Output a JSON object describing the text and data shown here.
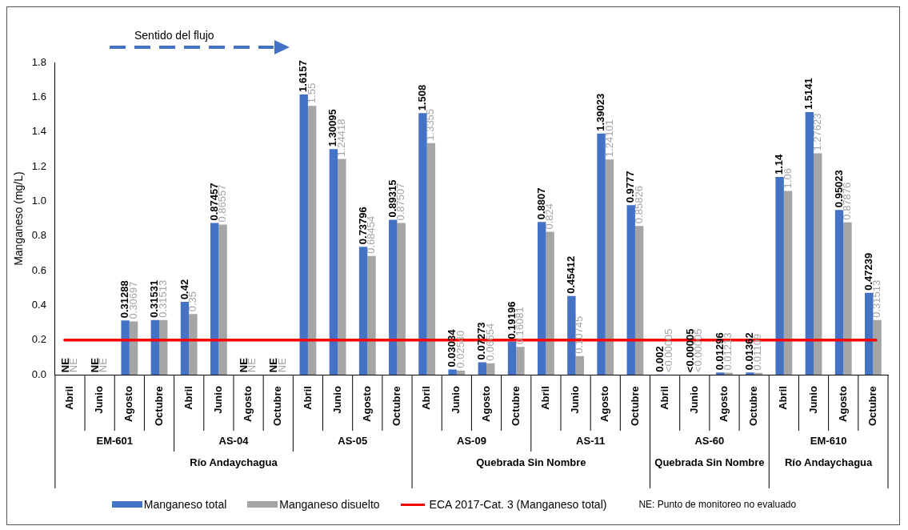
{
  "chart_data": {
    "type": "bar",
    "ylabel": "Manganeso (mg/L)",
    "categories": [
      "Abril",
      "Junio",
      "Agosto",
      "Octubre",
      "Abril",
      "Junio",
      "Agosto",
      "Octubre",
      "Abril",
      "Junio",
      "Agosto",
      "Octubre",
      "Abril",
      "Junio",
      "Agosto",
      "Octubre",
      "Abril",
      "Junio",
      "Agosto",
      "Octubre",
      "Abril",
      "Junio",
      "Agosto",
      "Octubre",
      "Abril",
      "Junio",
      "Agosto",
      "Octubre"
    ],
    "series": [
      {
        "name": "Manganeso total",
        "color": "#4472c4",
        "values": [
          null,
          null,
          0.31288,
          0.31531,
          0.42,
          0.87457,
          null,
          null,
          1.6157,
          1.30095,
          0.73796,
          0.89315,
          1.508,
          0.03034,
          0.07273,
          0.19196,
          0.8807,
          0.45412,
          1.39023,
          0.9777,
          0.002,
          5e-05,
          0.01296,
          0.01362,
          1.14,
          1.5141,
          0.95023,
          0.47239
        ],
        "value_labels": [
          "NE",
          "NE",
          "0.31288",
          "0.31531",
          "0.42",
          "0.87457",
          "NE",
          "NE",
          "1.6157",
          "1.30095",
          "0.73796",
          "0.89315",
          "1.508",
          "0.03034",
          "0.07273",
          "0.19196",
          "0.8807",
          "0.45412",
          "1.39023",
          "0.9777",
          "0.002",
          "<0.00005",
          "0.01296",
          "0.01362",
          "1.14",
          "1.5141",
          "0.95023",
          "0.47239"
        ]
      },
      {
        "name": "Manganeso disuelto",
        "color": "#a5a5a5",
        "values": [
          null,
          null,
          0.30697,
          0.31513,
          0.35,
          0.86557,
          null,
          null,
          1.55,
          1.24418,
          0.68454,
          0.87507,
          1.3355,
          0.0254,
          0.06654,
          0.16081,
          0.824,
          0.10745,
          1.24101,
          0.85826,
          5e-05,
          5e-05,
          0.01213,
          0.01109,
          1.06,
          1.27623,
          0.87876,
          0.31513
        ],
        "value_labels": [
          "NE",
          "NE",
          "0.30697",
          "0.31513",
          "0.35",
          "0.86557",
          "NE",
          "NE",
          "1.55",
          "1.24418",
          "0.68454",
          "0.87507",
          "1.3355",
          "0.02540",
          "0.06654",
          "0.16081",
          "0.824",
          "0.10745",
          "1.24101",
          "0.85826",
          "<0.00005",
          "<0.00005",
          "0.01213",
          "0.01109",
          "1.06",
          "1.27623",
          "0.87876",
          "0.31513"
        ]
      }
    ],
    "ylim": [
      0,
      1.8
    ],
    "yticks": [
      {
        "value": 0,
        "label": "0.0"
      },
      0.2,
      0.4,
      0.6,
      0.8,
      {
        "value": 1,
        "label": "1.0"
      },
      1.2,
      1.4,
      1.6,
      1.8
    ],
    "ref_lines": [
      {
        "axis": "y",
        "value": 0.2,
        "label": "ECA 2017-Cat. 3 (Manganeso total)",
        "color": "#ff0000"
      }
    ],
    "legend": "bottom",
    "annotations": [
      "Sentido del flujo",
      "NE: Punto de monitoreo no evaluado",
      "EM-601",
      "AS-04",
      "AS-05",
      "AS-09",
      "AS-11",
      "AS-60",
      "EM-610",
      "Río Andaychagua",
      "Quebrada Sin Nombre",
      "Quebrada Sin Nombre",
      "Río Andaychagua"
    ]
  }
}
